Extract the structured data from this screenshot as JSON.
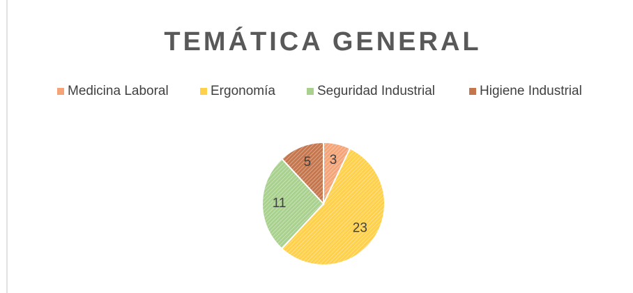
{
  "chart_data": {
    "type": "pie",
    "title": "TEMÁTICA GENERAL",
    "categories": [
      "Medicina Laboral",
      "Ergonomía",
      "Seguridad Industrial",
      "Higiene Industrial"
    ],
    "values": [
      3,
      23,
      11,
      5
    ],
    "colors": [
      "#f4a477",
      "#ffd04a",
      "#a9d18e",
      "#c5764c"
    ],
    "legend": "top"
  }
}
